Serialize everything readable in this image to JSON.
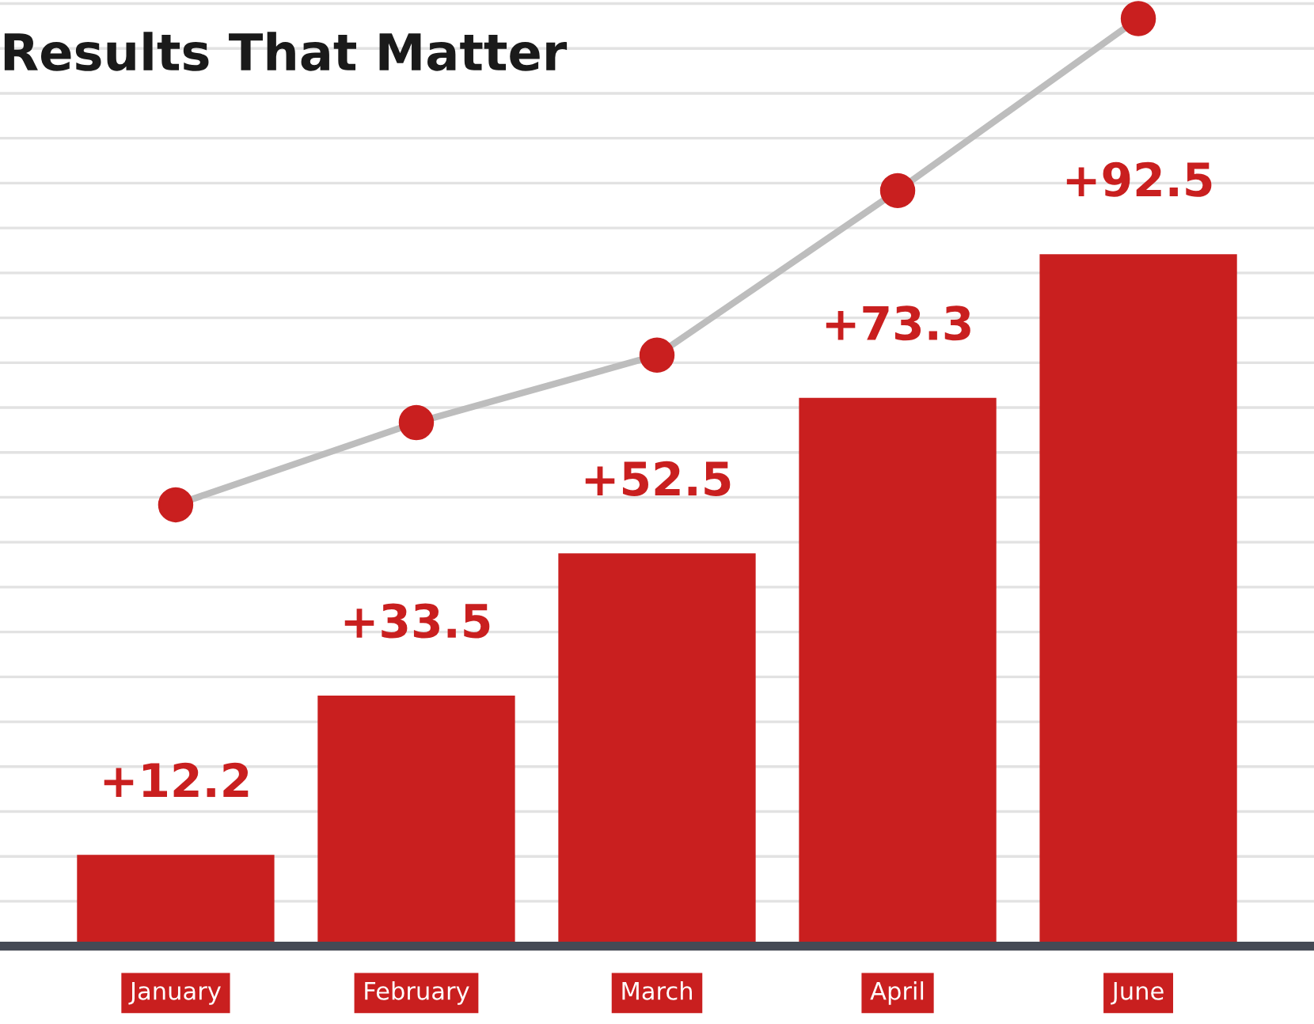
{
  "chart_data": {
    "type": "bar",
    "title": "Results That Matter",
    "grid": "y",
    "categories": [
      "January",
      "February",
      "March",
      "April",
      "June"
    ],
    "series": [
      {
        "color": "#c91f1f",
        "values": [
          12.2,
          33.5,
          52.5,
          73.3,
          92.5
        ],
        "value_labels": [
          "+12.2",
          "+33.5",
          "+52.5",
          "+73.3",
          "+92.5"
        ]
      },
      {
        "type": "line",
        "color": "#bdbdbd",
        "marker": "circle",
        "values": [
          59,
          70,
          79,
          101,
          124
        ]
      }
    ]
  }
}
